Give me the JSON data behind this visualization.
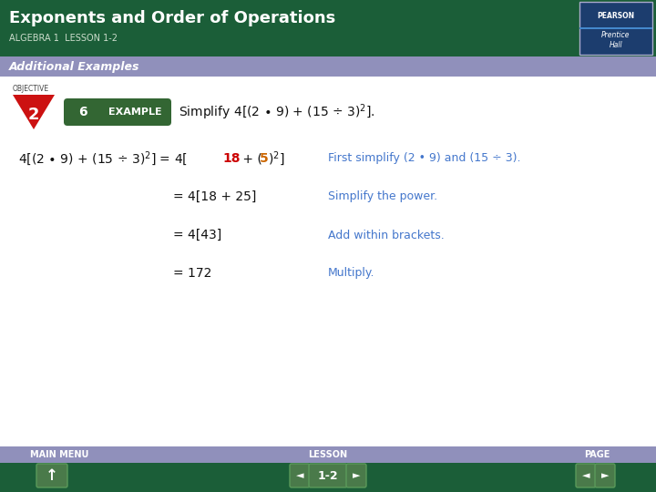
{
  "title": "Exponents and Order of Operations",
  "subtitle": "ALGEBRA 1  LESSON 1-2",
  "section_label": "Additional Examples",
  "objective_label": "OBJECTIVE",
  "objective_num": "2",
  "example_num": "6",
  "example_label": "EXAMPLE",
  "step1_comment": "First simplify (2 • 9) and (15 ÷ 3).",
  "step2_eq": "= 4[18 + 25]",
  "step2_comment": "Simplify the power.",
  "step3_eq": "= 4[43]",
  "step3_comment": "Add within brackets.",
  "step4_eq": "= 172",
  "step4_comment": "Multiply.",
  "footer_left": "MAIN MENU",
  "footer_mid": "LESSON",
  "footer_right": "PAGE",
  "page_label": "1-2",
  "bg_color": "#ffffff",
  "header_bg": "#1b5e38",
  "section_bg": "#9090bb",
  "footer_nav_bg": "#1b5e38",
  "footer_label_bg": "#9090bb",
  "title_color": "#ffffff",
  "subtitle_color": "#ccddcc",
  "section_color": "#ffffff",
  "body_color": "#111111",
  "red_color": "#cc0000",
  "orange_color": "#cc6600",
  "comment_color": "#4477cc",
  "example_badge_color": "#336633",
  "example_text_color": "#ffffff",
  "obj_triangle_color": "#cc1111",
  "obj_num_color": "#ffffff",
  "logo_bg": "#1c3d6e",
  "logo_stripe": "#4488cc"
}
